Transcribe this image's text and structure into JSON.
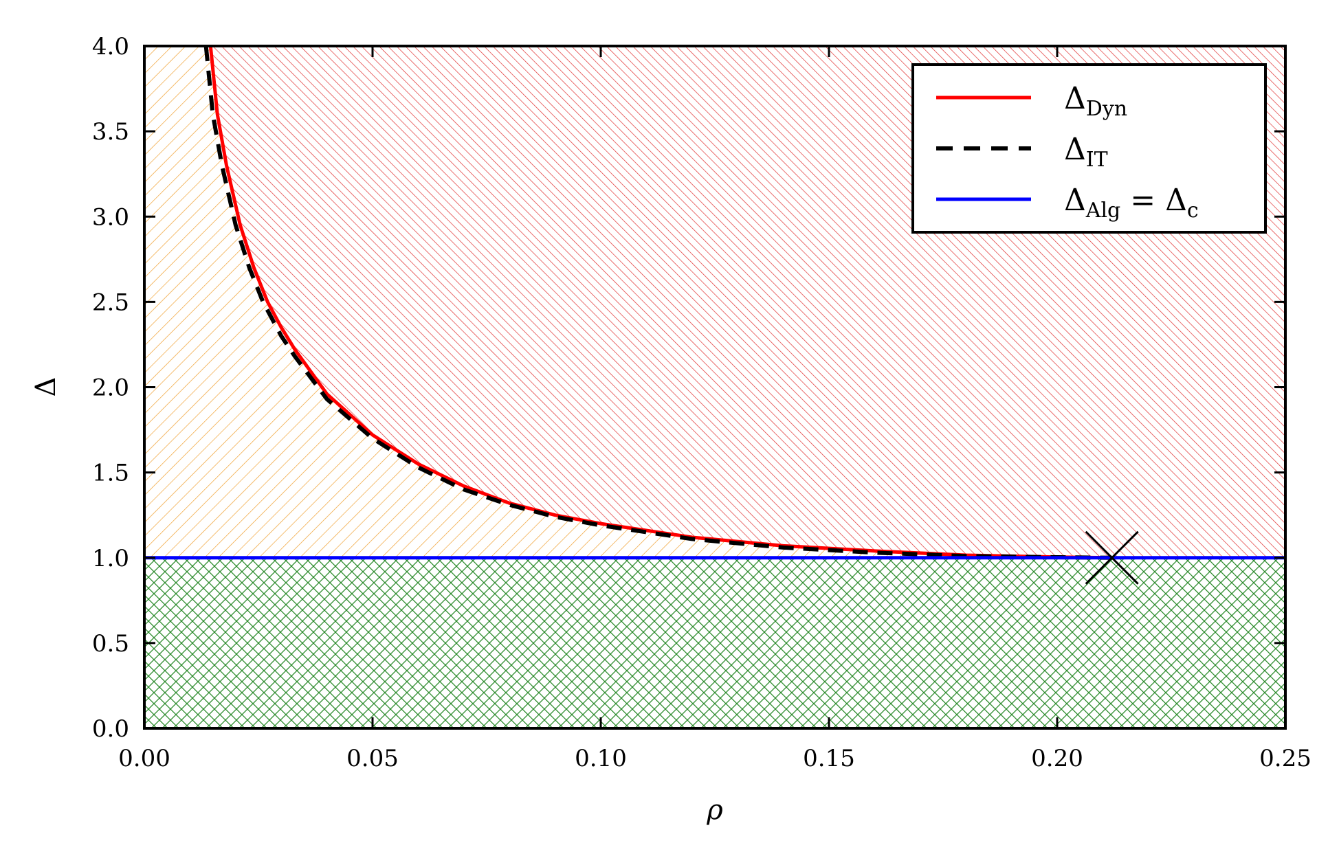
{
  "chart_data": {
    "type": "line",
    "title": "",
    "xlabel": "ρ",
    "ylabel": "Δ",
    "xlim": [
      0.0,
      0.25
    ],
    "ylim": [
      0.0,
      4.0
    ],
    "x_ticks": [
      "0.00",
      "0.05",
      "0.10",
      "0.15",
      "0.20",
      "0.25"
    ],
    "y_ticks": [
      "0.0",
      "0.5",
      "1.0",
      "1.5",
      "2.0",
      "2.5",
      "3.0",
      "3.5",
      "4.0"
    ],
    "grid": false,
    "legend_position": "top-right",
    "series": [
      {
        "name": "Δ_Dyn",
        "legend_base": "Δ",
        "legend_sub": "Dyn",
        "legend_suffix": "",
        "color": "#ff0000",
        "style": "solid",
        "x": [
          0.0145,
          0.016,
          0.018,
          0.021,
          0.024,
          0.027,
          0.03,
          0.033,
          0.04,
          0.05,
          0.06,
          0.07,
          0.08,
          0.09,
          0.1,
          0.12,
          0.14,
          0.16,
          0.18,
          0.2,
          0.212
        ],
        "y": [
          4.0,
          3.6,
          3.3,
          2.95,
          2.7,
          2.5,
          2.35,
          2.22,
          1.96,
          1.72,
          1.55,
          1.42,
          1.32,
          1.25,
          1.2,
          1.12,
          1.07,
          1.04,
          1.015,
          1.004,
          1.0
        ]
      },
      {
        "name": "Δ_IT",
        "legend_base": "Δ",
        "legend_sub": "IT",
        "legend_suffix": "",
        "color": "#000000",
        "style": "dashed",
        "x": [
          0.0135,
          0.015,
          0.017,
          0.02,
          0.023,
          0.026,
          0.03,
          0.033,
          0.04,
          0.05,
          0.06,
          0.07,
          0.08,
          0.09,
          0.1,
          0.12,
          0.14,
          0.16,
          0.18,
          0.2,
          0.212
        ],
        "y": [
          4.0,
          3.6,
          3.3,
          2.95,
          2.7,
          2.5,
          2.3,
          2.18,
          1.93,
          1.7,
          1.53,
          1.4,
          1.31,
          1.24,
          1.19,
          1.11,
          1.06,
          1.03,
          1.01,
          1.003,
          1.0
        ]
      },
      {
        "name": "Δ_Alg = Δ_c",
        "legend_base": "Δ",
        "legend_sub": "Alg",
        "legend_suffix": " = Δ",
        "legend_suffix_sub": "c",
        "color": "#0000ff",
        "style": "solid",
        "x": [
          0.0,
          0.25
        ],
        "y": [
          1.0,
          1.0
        ]
      }
    ],
    "regions": [
      {
        "region": "upper-right",
        "color": "#e03030",
        "hatch": "diagonal"
      },
      {
        "region": "middle-left",
        "color": "#f0a030",
        "hatch": "anti-diagonal"
      },
      {
        "region": "below-line",
        "color": "#2a8a2a",
        "hatch": "cross"
      }
    ],
    "markers": [
      {
        "x": 0.212,
        "y": 1.0,
        "symbol": "x",
        "color": "#000000"
      }
    ]
  }
}
